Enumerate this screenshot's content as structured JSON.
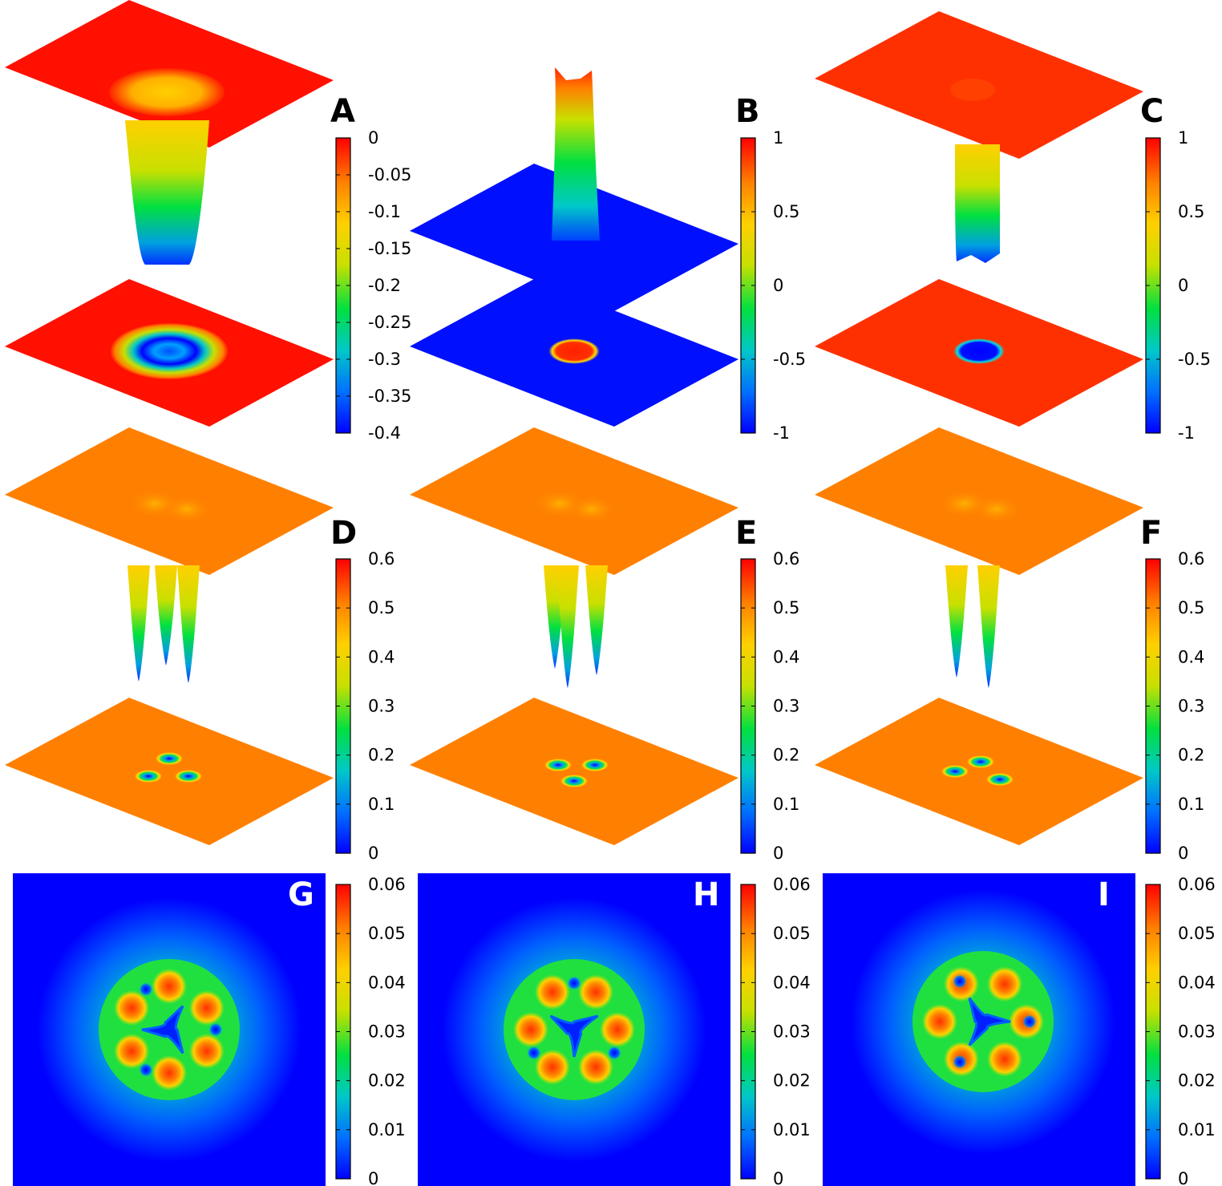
{
  "chart_data": [
    {
      "panel": "A",
      "type": "surface",
      "colorbar": {
        "ticks": [
          "0",
          "-0.05",
          "-0.1",
          "-0.15",
          "-0.2",
          "-0.25",
          "-0.3",
          "-0.35",
          "-0.4"
        ],
        "range": [
          -0.4,
          0
        ]
      },
      "surface": {
        "kind": "ring-well",
        "depth": -0.4,
        "background": 0
      }
    },
    {
      "panel": "B",
      "type": "surface",
      "colorbar": {
        "ticks": [
          "1",
          "0.5",
          "0",
          "-0.5",
          "-1"
        ],
        "range": [
          -1,
          1
        ]
      },
      "surface": {
        "kind": "central-peak",
        "peak": 1,
        "background": -1
      }
    },
    {
      "panel": "C",
      "type": "surface",
      "colorbar": {
        "ticks": [
          "1",
          "0.5",
          "0",
          "-0.5",
          "-1"
        ],
        "range": [
          -1,
          1
        ]
      },
      "surface": {
        "kind": "central-well",
        "well": -1,
        "background": 1
      }
    },
    {
      "panel": "D",
      "type": "surface",
      "colorbar": {
        "ticks": [
          "0.6",
          "0.5",
          "0.4",
          "0.3",
          "0.2",
          "0.1",
          "0"
        ],
        "range": [
          0,
          0.6
        ]
      },
      "surface": {
        "kind": "three-wells",
        "well": 0,
        "background": 0.5
      }
    },
    {
      "panel": "E",
      "type": "surface",
      "colorbar": {
        "ticks": [
          "0.6",
          "0.5",
          "0.4",
          "0.3",
          "0.2",
          "0.1",
          "0"
        ],
        "range": [
          0,
          0.6
        ]
      },
      "surface": {
        "kind": "three-wells",
        "well": 0,
        "background": 0.5
      }
    },
    {
      "panel": "F",
      "type": "surface",
      "colorbar": {
        "ticks": [
          "0.6",
          "0.5",
          "0.4",
          "0.3",
          "0.2",
          "0.1",
          "0"
        ],
        "range": [
          0,
          0.6
        ]
      },
      "surface": {
        "kind": "three-wells",
        "well": 0,
        "background": 0.5
      }
    },
    {
      "panel": "G",
      "type": "heatmap",
      "colorbar": {
        "ticks": [
          "0.06",
          "0.05",
          "0.04",
          "0.03",
          "0.02",
          "0.01",
          "0"
        ],
        "range": [
          0,
          0.06
        ]
      },
      "pattern": {
        "kind": "ring-with-lobes",
        "max": 0.06
      }
    },
    {
      "panel": "H",
      "type": "heatmap",
      "colorbar": {
        "ticks": [
          "0.06",
          "0.05",
          "0.04",
          "0.03",
          "0.02",
          "0.01",
          "0"
        ],
        "range": [
          0,
          0.06
        ]
      },
      "pattern": {
        "kind": "ring-with-lobes",
        "max": 0.06
      }
    },
    {
      "panel": "I",
      "type": "heatmap",
      "colorbar": {
        "ticks": [
          "0.06",
          "0.05",
          "0.04",
          "0.03",
          "0.02",
          "0.01",
          "0"
        ],
        "range": [
          0,
          0.06
        ]
      },
      "pattern": {
        "kind": "ring-with-lobes",
        "max": 0.06
      }
    }
  ],
  "colormap": [
    "#0000ff",
    "#0070ff",
    "#00c8c8",
    "#00e040",
    "#c8e000",
    "#ffd000",
    "#ff8000",
    "#ff0000"
  ]
}
